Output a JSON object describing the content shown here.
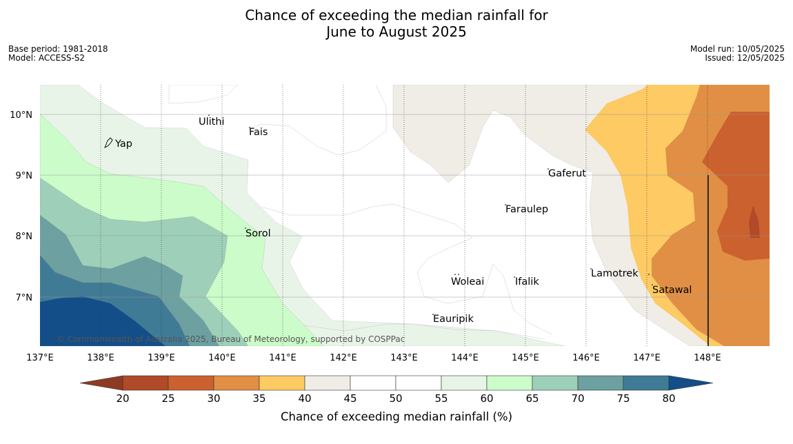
{
  "title_line1": "Chance of exceeding the median rainfall for",
  "title_line2": "June to August 2025",
  "meta": {
    "base_period": "Base period: 1981-2018",
    "model": "Model: ACCESS-S2",
    "model_run": "Model run: 10/05/2025",
    "issued": "Issued: 12/05/2025"
  },
  "map": {
    "lon_ticks": [
      "137°E",
      "138°E",
      "139°E",
      "140°E",
      "141°E",
      "142°E",
      "143°E",
      "144°E",
      "145°E",
      "146°E",
      "147°E",
      "148°E"
    ],
    "lat_ticks": [
      "10°N",
      "9°N",
      "8°N",
      "7°N"
    ],
    "places": [
      "Ulithi",
      "Fais",
      "Yap",
      "Gaferut",
      "Faraulep",
      "Sorol",
      "Lamotrek",
      "Woleai",
      "Ifalik",
      "Satawal",
      "Eauripik"
    ],
    "copyright": "© Commonwealth of Australia 2025, Bureau of Meteorology, supported by COSPPac"
  },
  "colorbar": {
    "ticks": [
      "20",
      "25",
      "30",
      "35",
      "40",
      "45",
      "50",
      "55",
      "60",
      "65",
      "70",
      "75",
      "80"
    ],
    "colors": [
      "#b04a28",
      "#cb612f",
      "#e08f44",
      "#fdca63",
      "#f0ece6",
      "#ffffff",
      "#ffffff",
      "#e9f4e8",
      "#cbfcc9",
      "#9ecfb8",
      "#6ca0a1",
      "#407b95",
      "#134e88"
    ],
    "low_color": "#8f3a22",
    "high_color": "#134e88",
    "label": "Chance of exceeding median rainfall (%)"
  }
}
